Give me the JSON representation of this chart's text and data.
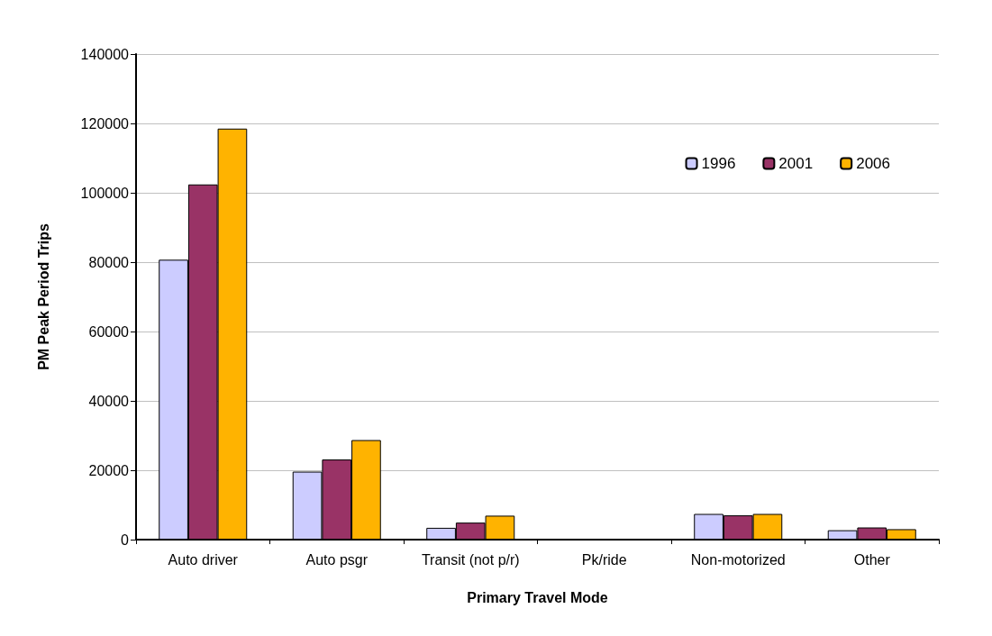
{
  "chart_data": {
    "type": "bar",
    "xlabel": "Primary Travel Mode",
    "ylabel": "PM Peak Period Trips",
    "categories": [
      "Auto driver",
      "Auto psgr",
      "Transit (not p/r)",
      "Pk/ride",
      "Non-motorized",
      "Other"
    ],
    "series": [
      {
        "name": "1996",
        "color": "#ccccff",
        "values": [
          80700,
          19600,
          3400,
          null,
          7400,
          2700
        ]
      },
      {
        "name": "2001",
        "color": "#993366",
        "values": [
          102400,
          23100,
          4900,
          null,
          7000,
          3500
        ]
      },
      {
        "name": "2006",
        "color": "#ffb300",
        "values": [
          118500,
          28700,
          6900,
          null,
          7400,
          3000
        ]
      }
    ],
    "ylim": [
      0,
      140000
    ],
    "yticks": [
      0,
      20000,
      40000,
      60000,
      80000,
      100000,
      120000,
      140000
    ],
    "grid": "y",
    "legend": "top right"
  }
}
